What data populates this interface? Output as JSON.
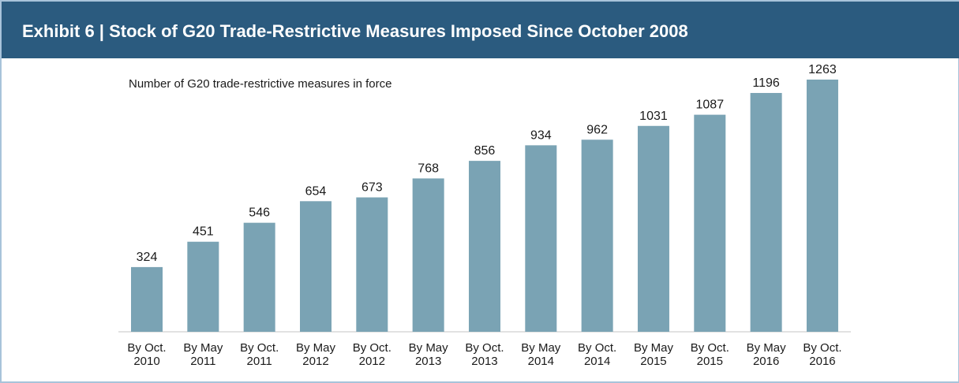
{
  "chart_data": {
    "type": "bar",
    "title": "Exhibit 6 | Stock of G20 Trade-Restrictive Measures Imposed Since October 2008",
    "subtitle": "Number of G20 trade-restrictive measures in force",
    "categories": [
      "By Oct.\n2010",
      "By May\n2011",
      "By Oct.\n2011",
      "By May\n2012",
      "By Oct.\n2012",
      "By May\n2013",
      "By Oct.\n2013",
      "By May\n2014",
      "By Oct.\n2014",
      "By May\n2015",
      "By Oct.\n2015",
      "By May\n2016",
      "By Oct.\n2016"
    ],
    "values": [
      324,
      451,
      546,
      654,
      673,
      768,
      856,
      934,
      962,
      1031,
      1087,
      1196,
      1263
    ],
    "color": "#7aa3b4"
  }
}
